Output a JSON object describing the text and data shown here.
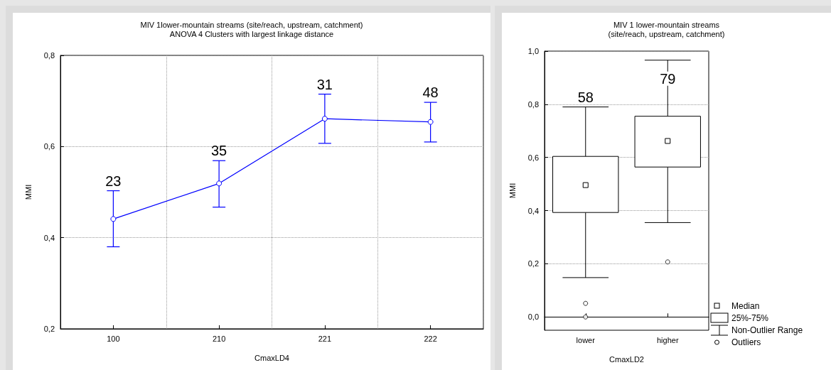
{
  "chart_data": [
    {
      "type": "line",
      "title": "MIV 1lower-mountain streams (site/reach, upstream, catchment)",
      "subtitle": "ANOVA 4 Clusters with largest linkage distance",
      "xlabel": "CmaxLD4",
      "ylabel": "MMI",
      "categories": [
        "100",
        "210",
        "221",
        "222"
      ],
      "series": [
        {
          "color": "#0000ff",
          "values": [
            0.441,
            0.519,
            0.661,
            0.654
          ],
          "errors": [
            [
              0.38,
              0.503
            ],
            [
              0.467,
              0.569
            ],
            [
              0.607,
              0.715
            ],
            [
              0.61,
              0.697
            ]
          ]
        }
      ],
      "ylim": [
        0.2,
        0.8
      ],
      "yticks": [
        {
          "value": 0.2,
          "label": "0,2"
        },
        {
          "value": 0.4,
          "label": "0,4"
        },
        {
          "value": 0.6,
          "label": "0,6"
        },
        {
          "value": 0.8,
          "label": "0,8"
        }
      ],
      "annotations": [
        "23",
        "35",
        "31",
        "48"
      ],
      "grid": true,
      "marker": "circle",
      "line_style": "solid"
    },
    {
      "type": "box",
      "title": "MIV 1 lower-mountain streams",
      "subtitle": "(site/reach, upstream, catchment)",
      "xlabel": "CmaxLD2",
      "ylabel": "MMI",
      "categories": [
        "lower",
        "higher"
      ],
      "boxes": [
        {
          "low": 0.148,
          "q1": 0.393,
          "median": 0.496,
          "q3": 0.604,
          "high": 0.79,
          "outliers": [
            0.051,
            0.0
          ]
        },
        {
          "low": 0.355,
          "q1": 0.564,
          "median": 0.662,
          "q3": 0.755,
          "high": 0.966,
          "outliers": [
            0.207
          ]
        }
      ],
      "ylim": [
        -0.05,
        1.0
      ],
      "yticks": [
        {
          "value": 0,
          "label": "0,0"
        },
        {
          "value": 0.2,
          "label": "0,2"
        },
        {
          "value": 0.4,
          "label": "0,4"
        },
        {
          "value": 0.6,
          "label": "0,6"
        },
        {
          "value": 0.8,
          "label": "0,8"
        },
        {
          "value": 1.0,
          "label": "1,0"
        }
      ],
      "annotations": [
        "58",
        "79",
        "Median",
        "25%-75%",
        "Non-Outlier Range",
        "Outliers"
      ],
      "grid": "y"
    }
  ]
}
